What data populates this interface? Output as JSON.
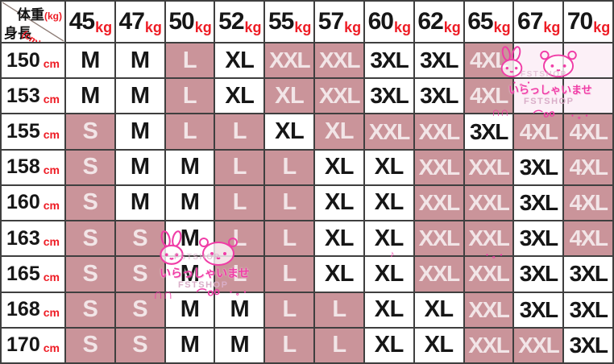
{
  "chart_data": {
    "type": "table",
    "corner": {
      "weight_label": "体重",
      "weight_unit": "(kg)",
      "height_label": "身長",
      "height_unit": "(cm)"
    },
    "unit_kg": "kg",
    "unit_cm": "cm",
    "weight_columns_kg": [
      "45",
      "47",
      "50",
      "52",
      "55",
      "57",
      "60",
      "62",
      "65",
      "67",
      "70"
    ],
    "height_rows_cm": [
      "150",
      "153",
      "155",
      "158",
      "160",
      "163",
      "165",
      "168",
      "170"
    ],
    "sizes": [
      [
        "M",
        "M",
        "L",
        "XL",
        "XXL",
        "XXL",
        "3XL",
        "3XL",
        "4XL",
        "",
        ""
      ],
      [
        "M",
        "M",
        "L",
        "XL",
        "XL",
        "XXL",
        "3XL",
        "3XL",
        "4XL",
        "",
        ""
      ],
      [
        "S",
        "M",
        "L",
        "L",
        "XL",
        "XL",
        "XXL",
        "XXL",
        "3XL",
        "4XL",
        "4XL"
      ],
      [
        "S",
        "M",
        "M",
        "L",
        "L",
        "XL",
        "XL",
        "XXL",
        "XXL",
        "3XL",
        "4XL"
      ],
      [
        "S",
        "M",
        "M",
        "L",
        "L",
        "XL",
        "XL",
        "XXL",
        "XXL",
        "3XL",
        "4XL"
      ],
      [
        "S",
        "S",
        "M",
        "L",
        "L",
        "XL",
        "XL",
        "XXL",
        "XXL",
        "3XL",
        "4XL"
      ],
      [
        "S",
        "S",
        "M",
        "L",
        "L",
        "XL",
        "XL",
        "XXL",
        "XXL",
        "3XL",
        "3XL"
      ],
      [
        "S",
        "S",
        "M",
        "M",
        "L",
        "L",
        "XL",
        "XL",
        "XXL",
        "3XL",
        "3XL"
      ],
      [
        "S",
        "S",
        "M",
        "M",
        "L",
        "L",
        "XL",
        "XL",
        "XXL",
        "XXL",
        "3XL"
      ]
    ],
    "cell_shading": [
      [
        "w",
        "w",
        "p",
        "w",
        "p",
        "p",
        "w",
        "w",
        "p",
        "l",
        "l"
      ],
      [
        "w",
        "w",
        "p",
        "w",
        "p",
        "p",
        "w",
        "w",
        "p",
        "l",
        "l"
      ],
      [
        "p",
        "w",
        "p",
        "p",
        "w",
        "p",
        "p",
        "p",
        "w",
        "p",
        "p"
      ],
      [
        "p",
        "w",
        "w",
        "p",
        "p",
        "w",
        "w",
        "p",
        "p",
        "w",
        "p"
      ],
      [
        "p",
        "w",
        "w",
        "p",
        "p",
        "w",
        "w",
        "p",
        "p",
        "w",
        "p"
      ],
      [
        "p",
        "p",
        "w",
        "p",
        "p",
        "w",
        "w",
        "p",
        "p",
        "w",
        "p"
      ],
      [
        "p",
        "p",
        "w",
        "p",
        "p",
        "w",
        "w",
        "p",
        "p",
        "w",
        "w"
      ],
      [
        "p",
        "p",
        "w",
        "w",
        "p",
        "p",
        "w",
        "w",
        "p",
        "w",
        "w"
      ],
      [
        "p",
        "p",
        "w",
        "w",
        "p",
        "p",
        "w",
        "w",
        "p",
        "p",
        "w"
      ]
    ]
  },
  "watermark": {
    "shop": "FSTSHOP",
    "greeting": "いらっしゃいませ",
    "ears": "∩∩",
    "bow": "⌒oo",
    "note": "♪",
    "dots": "・。・"
  },
  "colors": {
    "pink_cell": "#ca949a",
    "light_cell": "#fcf0f7",
    "unit_red": "#ee1c25",
    "text_black": "#161616",
    "pink_cell_text": "#f2e5e7",
    "border": "#3f3f3f",
    "doodle_pink": "#f03ca6",
    "shop_gray_pink": "#d9aec8"
  }
}
